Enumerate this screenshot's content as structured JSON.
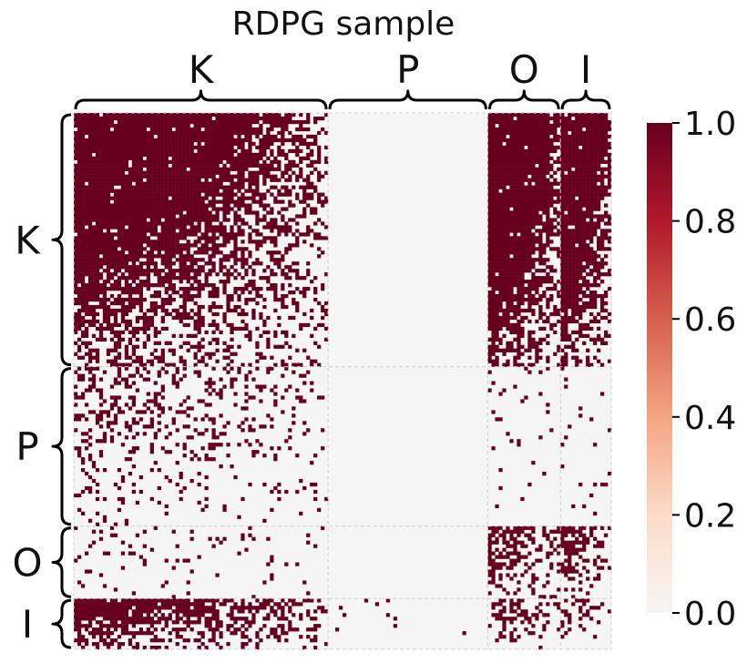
{
  "chart_data": {
    "type": "heatmap",
    "title": "RDPG sample",
    "xlabel": "",
    "ylabel": "",
    "blocks": [
      "K",
      "P",
      "O",
      "I"
    ],
    "block_sizes": [
      70,
      44,
      20,
      14
    ],
    "colorbar": {
      "min": 0.0,
      "max": 1.0,
      "ticks": [
        "0.0",
        "0.2",
        "0.4",
        "0.6",
        "0.8",
        "1.0"
      ],
      "colors": [
        "#f5f5f5",
        "#fddbc7",
        "#f4a582",
        "#d6604d",
        "#b2182b",
        "#67001f"
      ]
    },
    "block_connection_prob": [
      [
        0.58,
        0.0,
        0.82,
        0.74
      ],
      [
        0.12,
        0.0,
        0.03,
        0.03
      ],
      [
        0.04,
        0.0,
        0.28,
        0.28
      ],
      [
        0.4,
        0.01,
        0.2,
        0.14
      ]
    ],
    "cell_colors": {
      "edge": "#67001f",
      "no_edge": "#f5f5f5",
      "grid": "#d0d0d0"
    }
  }
}
